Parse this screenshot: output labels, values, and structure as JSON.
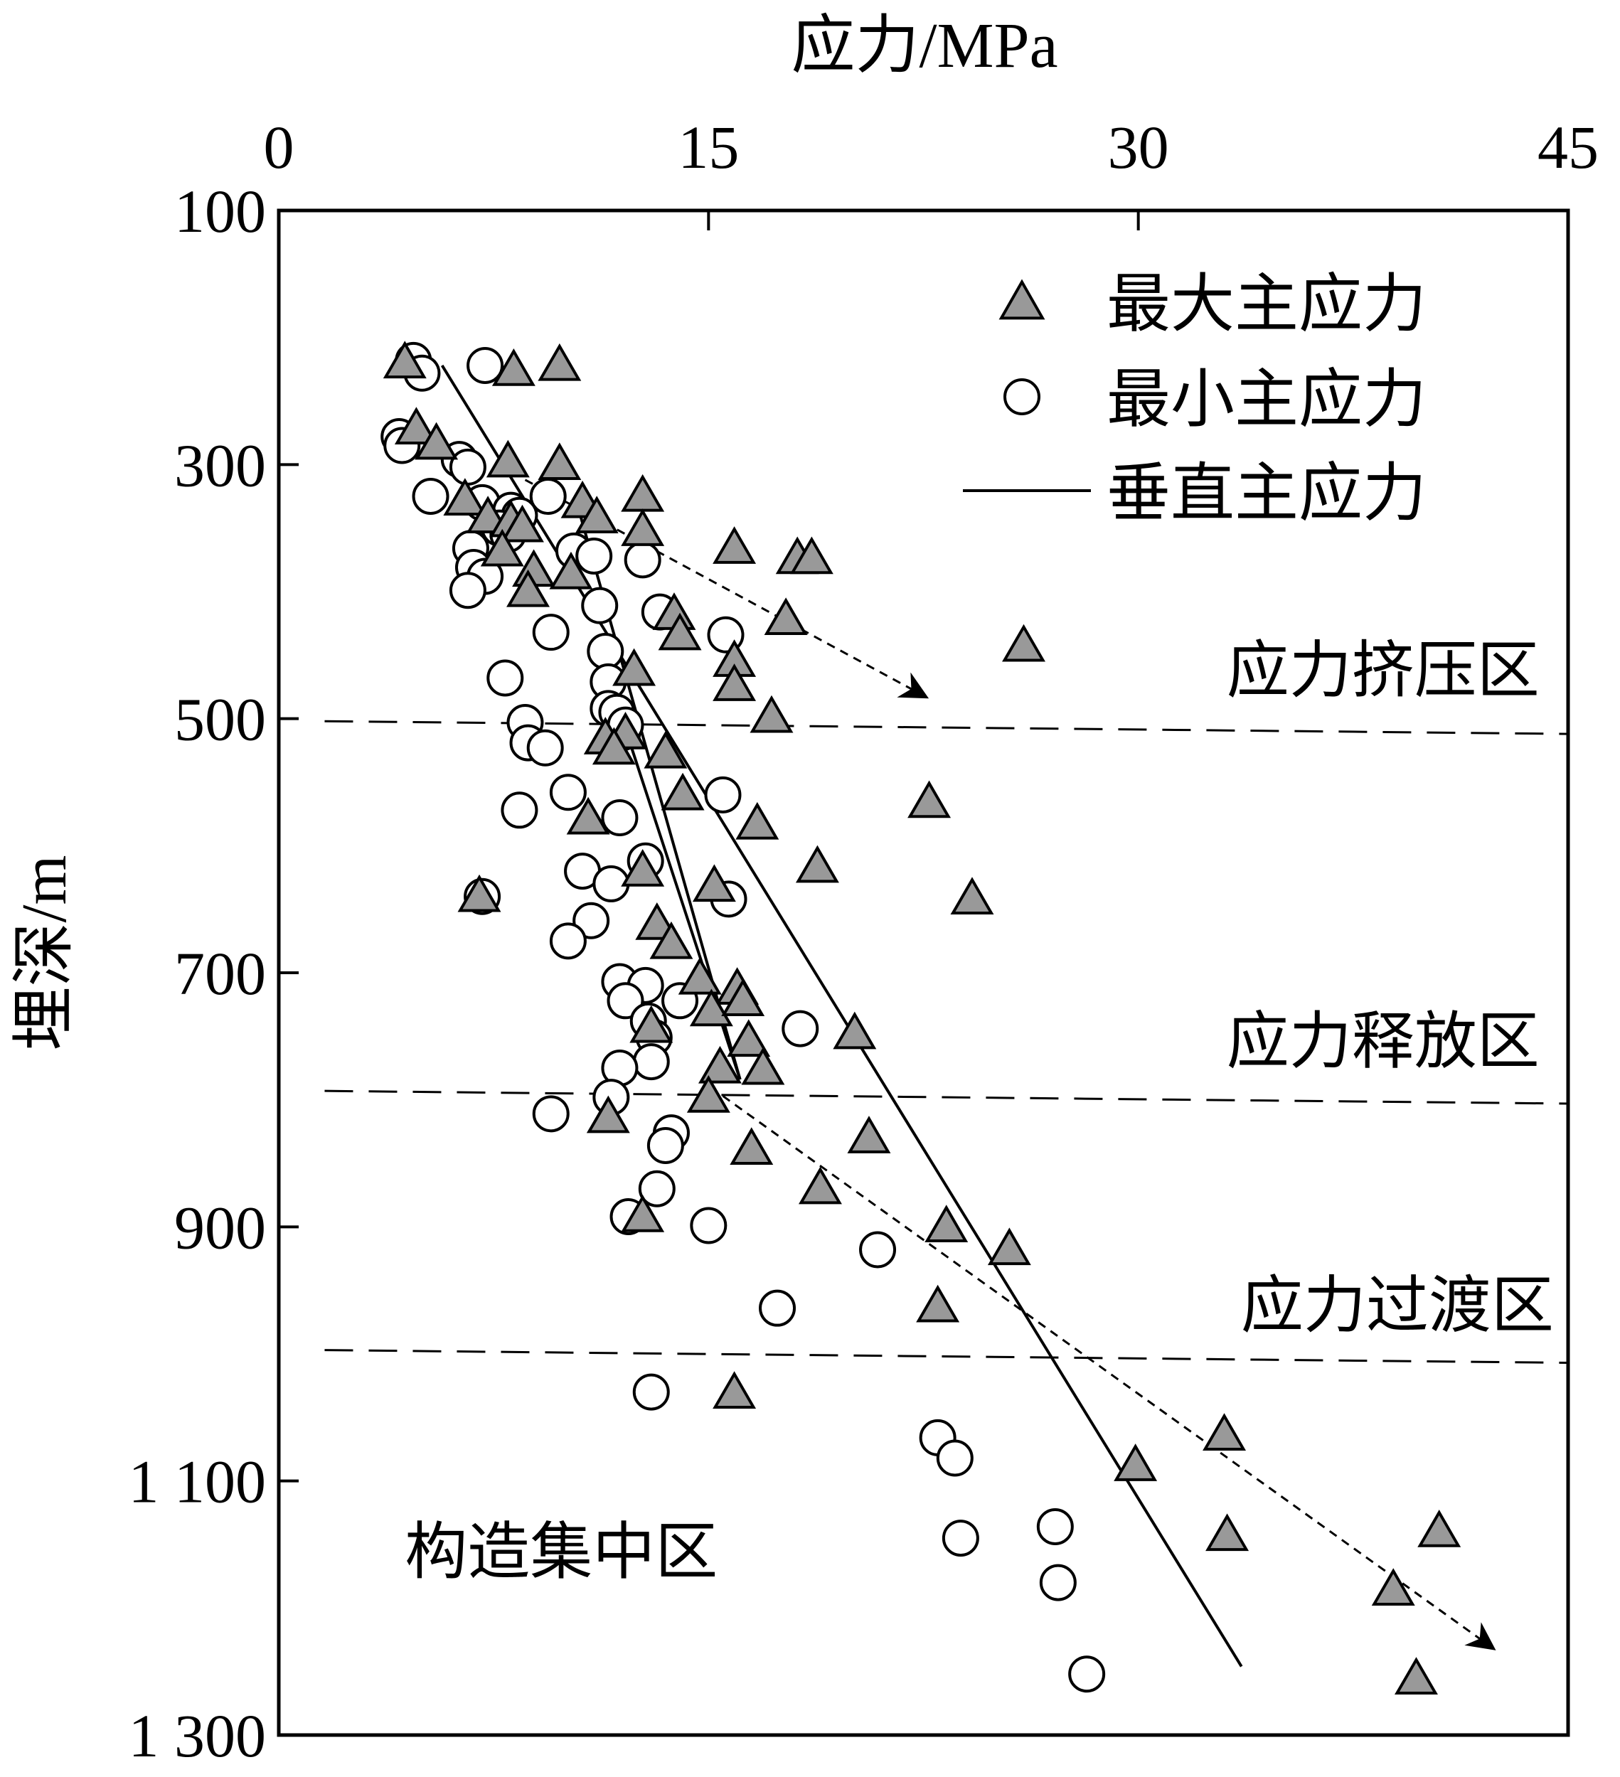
{
  "chart_data": {
    "type": "scatter",
    "xlabel": "应力/MPa",
    "ylabel": "埋深/m",
    "x_axis_position": "top",
    "y_axis_inverted": true,
    "xlim": [
      0,
      45
    ],
    "ylim": [
      100,
      1300
    ],
    "x_ticks": [
      0,
      15,
      30,
      45
    ],
    "x_tick_labels": [
      "0",
      "15",
      "30",
      "45"
    ],
    "y_ticks": [
      100,
      300,
      500,
      700,
      900,
      1100,
      1300
    ],
    "y_tick_labels": [
      "100",
      "300",
      "500",
      "700",
      "900",
      "1 100",
      "1 300"
    ],
    "grid": false,
    "legend": {
      "position": "top-right",
      "entries": [
        {
          "label": "最大主应力",
          "marker": "triangle",
          "fill": "#999999"
        },
        {
          "label": "最小主应力",
          "marker": "circle",
          "fill": "#ffffff"
        },
        {
          "label": "垂直主应力",
          "marker": "line"
        }
      ]
    },
    "series": [
      {
        "name": "最大主应力",
        "marker": "triangle",
        "points": [
          [
            4.4,
            220
          ],
          [
            8.2,
            226
          ],
          [
            9.8,
            222
          ],
          [
            4.8,
            272
          ],
          [
            5.5,
            284
          ],
          [
            8.0,
            298
          ],
          [
            9.8,
            300
          ],
          [
            6.5,
            328
          ],
          [
            7.3,
            342
          ],
          [
            8.1,
            345
          ],
          [
            8.5,
            349
          ],
          [
            10.6,
            330
          ],
          [
            11.1,
            342
          ],
          [
            12.7,
            325
          ],
          [
            12.7,
            352
          ],
          [
            7.8,
            368
          ],
          [
            8.9,
            384
          ],
          [
            10.2,
            386
          ],
          [
            8.7,
            400
          ],
          [
            13.8,
            418
          ],
          [
            14.0,
            434
          ],
          [
            15.9,
            366
          ],
          [
            18.1,
            374
          ],
          [
            18.6,
            374
          ],
          [
            17.7,
            422
          ],
          [
            26.0,
            443
          ],
          [
            12.4,
            462
          ],
          [
            15.9,
            455
          ],
          [
            15.9,
            474
          ],
          [
            17.2,
            499
          ],
          [
            11.4,
            516
          ],
          [
            12.1,
            512
          ],
          [
            11.7,
            524
          ],
          [
            13.5,
            527
          ],
          [
            14.1,
            560
          ],
          [
            22.7,
            566
          ],
          [
            10.8,
            579
          ],
          [
            16.7,
            583
          ],
          [
            12.7,
            620
          ],
          [
            18.8,
            617
          ],
          [
            15.2,
            632
          ],
          [
            24.2,
            642
          ],
          [
            7.0,
            640
          ],
          [
            13.2,
            662
          ],
          [
            13.7,
            677
          ],
          [
            14.7,
            705
          ],
          [
            16.0,
            713
          ],
          [
            15.1,
            730
          ],
          [
            16.2,
            722
          ],
          [
            13.0,
            743
          ],
          [
            16.4,
            754
          ],
          [
            20.1,
            748
          ],
          [
            16.9,
            776
          ],
          [
            15.4,
            775
          ],
          [
            15.0,
            798
          ],
          [
            11.5,
            814
          ],
          [
            20.6,
            830
          ],
          [
            16.5,
            839
          ],
          [
            18.9,
            870
          ],
          [
            12.7,
            892
          ],
          [
            23.3,
            900
          ],
          [
            25.5,
            918
          ],
          [
            23.0,
            963
          ],
          [
            15.9,
            1031
          ],
          [
            29.9,
            1088
          ],
          [
            33.0,
            1064
          ],
          [
            33.1,
            1143
          ],
          [
            40.5,
            1140
          ],
          [
            38.9,
            1186
          ],
          [
            39.7,
            1256
          ]
        ]
      },
      {
        "name": "最小主应力",
        "marker": "circle",
        "points": [
          [
            4.7,
            218
          ],
          [
            5.0,
            228
          ],
          [
            7.2,
            222
          ],
          [
            4.2,
            278
          ],
          [
            4.3,
            285
          ],
          [
            6.3,
            296
          ],
          [
            6.6,
            302
          ],
          [
            5.3,
            325
          ],
          [
            7.1,
            330
          ],
          [
            8.1,
            336
          ],
          [
            8.4,
            340
          ],
          [
            9.4,
            325
          ],
          [
            7.7,
            350
          ],
          [
            8.0,
            355
          ],
          [
            6.7,
            366
          ],
          [
            10.3,
            368
          ],
          [
            11.0,
            372
          ],
          [
            12.7,
            375
          ],
          [
            6.8,
            381
          ],
          [
            7.2,
            388
          ],
          [
            6.6,
            399
          ],
          [
            11.2,
            411
          ],
          [
            13.3,
            416
          ],
          [
            9.5,
            432
          ],
          [
            15.6,
            434
          ],
          [
            11.4,
            447
          ],
          [
            11.5,
            471
          ],
          [
            7.9,
            468
          ],
          [
            11.5,
            492
          ],
          [
            11.8,
            495
          ],
          [
            8.6,
            503
          ],
          [
            8.7,
            519
          ],
          [
            9.3,
            523
          ],
          [
            12.0,
            511
          ],
          [
            12.1,
            505
          ],
          [
            15.5,
            560
          ],
          [
            10.1,
            558
          ],
          [
            11.9,
            578
          ],
          [
            8.4,
            572
          ],
          [
            12.8,
            612
          ],
          [
            10.6,
            620
          ],
          [
            11.6,
            630
          ],
          [
            15.7,
            642
          ],
          [
            7.1,
            640
          ],
          [
            10.9,
            659
          ],
          [
            10.1,
            675
          ],
          [
            11.9,
            707
          ],
          [
            12.8,
            710
          ],
          [
            12.1,
            722
          ],
          [
            14.0,
            722
          ],
          [
            12.9,
            738
          ],
          [
            13.1,
            751
          ],
          [
            13.0,
            770
          ],
          [
            18.2,
            744
          ],
          [
            11.9,
            775
          ],
          [
            11.6,
            798
          ],
          [
            9.5,
            811
          ],
          [
            13.7,
            826
          ],
          [
            13.5,
            836
          ],
          [
            13.2,
            870
          ],
          [
            12.2,
            892
          ],
          [
            15.0,
            899
          ],
          [
            20.9,
            918
          ],
          [
            17.4,
            964
          ],
          [
            13.0,
            1030
          ],
          [
            23.0,
            1066
          ],
          [
            23.6,
            1082
          ],
          [
            23.8,
            1145
          ],
          [
            27.1,
            1136
          ],
          [
            27.2,
            1180
          ],
          [
            28.2,
            1252
          ]
        ]
      }
    ],
    "lines": [
      {
        "name": "垂直主应力",
        "style": "solid",
        "points": [
          [
            5.7,
            222
          ],
          [
            33.6,
            1246
          ]
        ]
      },
      {
        "style": "solid",
        "points": [
          [
            10.4,
            330
          ],
          [
            16.1,
            784
          ]
        ]
      },
      {
        "style": "solid",
        "points": [
          [
            12.2,
            515
          ],
          [
            16.1,
            784
          ]
        ]
      },
      {
        "style": "dashed",
        "arrow": true,
        "points": [
          [
            8.6,
            312
          ],
          [
            22.6,
            483
          ]
        ]
      },
      {
        "style": "dashed",
        "arrow": true,
        "points": [
          [
            15.5,
            797
          ],
          [
            42.4,
            1232
          ]
        ]
      }
    ],
    "zone_boundaries": [
      {
        "points": [
          [
            1.6,
            502
          ],
          [
            45,
            512
          ]
        ]
      },
      {
        "points": [
          [
            1.6,
            793
          ],
          [
            45,
            803
          ]
        ]
      },
      {
        "points": [
          [
            1.6,
            997
          ],
          [
            45,
            1007
          ]
        ]
      }
    ],
    "annotations": [
      {
        "text": "应力挤压区",
        "x": 44.0,
        "y": 462
      },
      {
        "text": "应力释放区",
        "x": 44.0,
        "y": 754
      },
      {
        "text": "应力过渡区",
        "x": 44.5,
        "y": 962
      },
      {
        "text": "构造集中区",
        "x": 4.4,
        "y": 1156
      }
    ]
  }
}
